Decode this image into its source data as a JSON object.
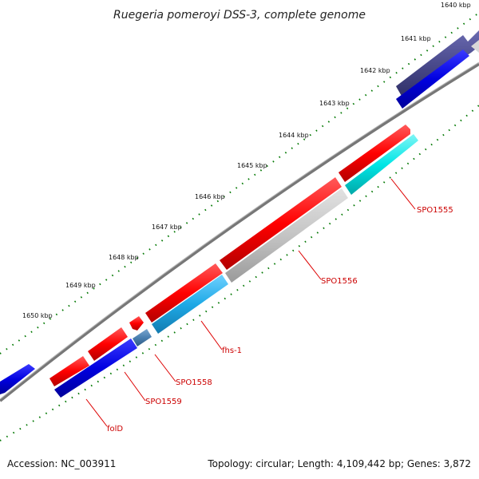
{
  "title": "Ruegeria pomeroyi DSS-3, complete genome",
  "footer": {
    "accession": "Accession: NC_003911",
    "topology": "Topology: circular; Length: 4,109,442 bp; Genes: 3,872"
  },
  "ticks": [
    "1640 kbp",
    "1641 kbp",
    "1642 kbp",
    "1643 kbp",
    "1644 kbp",
    "1645 kbp",
    "1646 kbp",
    "1647 kbp",
    "1648 kbp",
    "1649 kbp",
    "1650 kbp"
  ],
  "gene_labels": [
    "SPO1555",
    "SPO1556",
    "fhs-1",
    "SPO1558",
    "SPO1559",
    "folD"
  ],
  "colors": {
    "forward": "#ff0000",
    "reverse": "#0000dd",
    "cyan": "#00e6e6",
    "light_blue": "#1ea9e6",
    "grey": "#c8c8c8",
    "steel": "#4a7fb0",
    "navy": "#4a4a8c",
    "backbone": "#888888",
    "tick": "#006600"
  }
}
